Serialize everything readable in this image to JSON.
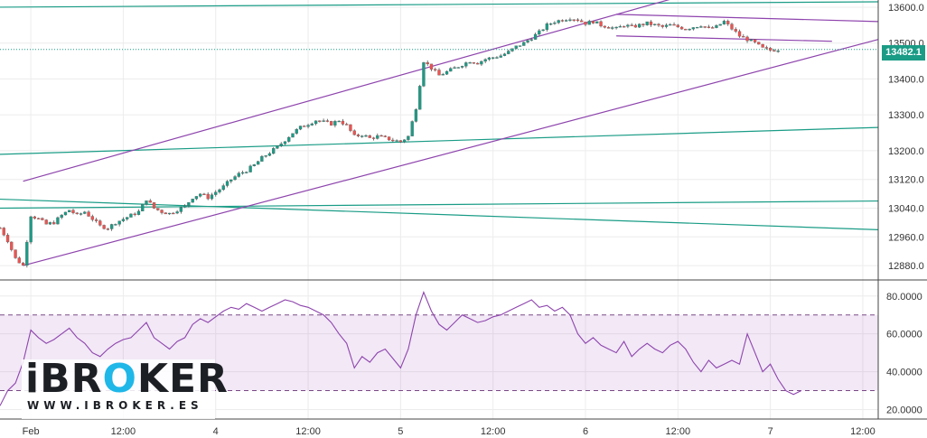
{
  "chart_data": [
    {
      "type": "candlestick",
      "panel": "price",
      "y_range": [
        12840,
        13620
      ],
      "y_ticks": [
        "13600.0",
        "13500.0",
        "13400.0",
        "13300.0",
        "13200.0",
        "13120.0",
        "13040.0",
        "12960.0",
        "12880.0"
      ],
      "y_tick_values": [
        13600,
        13500,
        13400,
        13300,
        13200,
        13120,
        13040,
        12960,
        12880
      ],
      "last_price": "13482.1",
      "x_tick_labels": [
        "Feb",
        "12:00",
        "4",
        "12:00",
        "5",
        "12:00",
        "6",
        "12:00",
        "7",
        "12:00"
      ],
      "x_tick_hours": [
        6,
        18,
        30,
        42,
        54,
        66,
        78,
        90,
        102,
        114
      ],
      "x_range_hours": [
        2,
        116
      ],
      "price_path": [
        [
          2,
          12985
        ],
        [
          3,
          12950
        ],
        [
          4,
          12900
        ],
        [
          5,
          12880
        ],
        [
          6,
          13020
        ],
        [
          7,
          13010
        ],
        [
          8,
          12995
        ],
        [
          9,
          13000
        ],
        [
          10,
          13020
        ],
        [
          11,
          13035
        ],
        [
          12,
          13020
        ],
        [
          13,
          13030
        ],
        [
          14,
          13010
        ],
        [
          15,
          12990
        ],
        [
          16,
          12985
        ],
        [
          17,
          13000
        ],
        [
          18,
          13010
        ],
        [
          19,
          13020
        ],
        [
          20,
          13030
        ],
        [
          21,
          13065
        ],
        [
          22,
          13040
        ],
        [
          23,
          13030
        ],
        [
          24,
          13025
        ],
        [
          25,
          13035
        ],
        [
          26,
          13045
        ],
        [
          27,
          13070
        ],
        [
          28,
          13080
        ],
        [
          29,
          13070
        ],
        [
          30,
          13085
        ],
        [
          31,
          13100
        ],
        [
          32,
          13120
        ],
        [
          33,
          13135
        ],
        [
          34,
          13145
        ],
        [
          35,
          13160
        ],
        [
          36,
          13180
        ],
        [
          37,
          13195
        ],
        [
          38,
          13210
        ],
        [
          39,
          13230
        ],
        [
          40,
          13250
        ],
        [
          41,
          13265
        ],
        [
          42,
          13275
        ],
        [
          43,
          13285
        ],
        [
          44,
          13280
        ],
        [
          45,
          13275
        ],
        [
          46,
          13285
        ],
        [
          47,
          13270
        ],
        [
          48,
          13240
        ],
        [
          49,
          13245
        ],
        [
          50,
          13235
        ],
        [
          51,
          13240
        ],
        [
          52,
          13235
        ],
        [
          53,
          13230
        ],
        [
          54,
          13225
        ],
        [
          55,
          13240
        ],
        [
          56,
          13320
        ],
        [
          57,
          13450
        ],
        [
          58,
          13430
        ],
        [
          59,
          13410
        ],
        [
          60,
          13420
        ],
        [
          61,
          13430
        ],
        [
          62,
          13440
        ],
        [
          63,
          13450
        ],
        [
          64,
          13445
        ],
        [
          65,
          13455
        ],
        [
          66,
          13460
        ],
        [
          67,
          13465
        ],
        [
          68,
          13475
        ],
        [
          69,
          13490
        ],
        [
          70,
          13500
        ],
        [
          71,
          13515
        ],
        [
          72,
          13530
        ],
        [
          73,
          13550
        ],
        [
          74,
          13560
        ],
        [
          75,
          13565
        ],
        [
          76,
          13570
        ],
        [
          77,
          13565
        ],
        [
          78,
          13555
        ],
        [
          79,
          13560
        ],
        [
          80,
          13550
        ],
        [
          81,
          13545
        ],
        [
          82,
          13540
        ],
        [
          83,
          13550
        ],
        [
          84,
          13545
        ],
        [
          85,
          13550
        ],
        [
          86,
          13555
        ],
        [
          87,
          13550
        ],
        [
          88,
          13545
        ],
        [
          89,
          13550
        ],
        [
          90,
          13545
        ],
        [
          91,
          13540
        ],
        [
          92,
          13545
        ],
        [
          93,
          13550
        ],
        [
          94,
          13540
        ],
        [
          95,
          13545
        ],
        [
          96,
          13560
        ],
        [
          97,
          13540
        ],
        [
          98,
          13520
        ],
        [
          99,
          13510
        ],
        [
          100,
          13500
        ],
        [
          101,
          13485
        ],
        [
          102,
          13480
        ],
        [
          103,
          13482
        ]
      ],
      "trendlines_teal": [
        {
          "from": [
            2,
            13600
          ],
          "to": [
            116,
            13615
          ]
        },
        {
          "from": [
            2,
            13190
          ],
          "to": [
            116,
            13265
          ]
        },
        {
          "from": [
            2,
            13065
          ],
          "to": [
            116,
            12980
          ]
        },
        {
          "from": [
            2,
            13040
          ],
          "to": [
            116,
            13060
          ]
        }
      ],
      "trendlines_purple": [
        {
          "from": [
            5,
            13115
          ],
          "to": [
            92,
            13640
          ]
        },
        {
          "from": [
            5,
            12880
          ],
          "to": [
            116,
            13510
          ]
        },
        {
          "from": [
            82,
            13580
          ],
          "to": [
            116,
            13560
          ]
        },
        {
          "from": [
            82,
            13520
          ],
          "to": [
            110,
            13505
          ]
        }
      ]
    },
    {
      "type": "line",
      "panel": "rsi",
      "y_range": [
        15,
        88
      ],
      "y_ticks": [
        "80.0000",
        "60.0000",
        "40.0000",
        "20.0000"
      ],
      "y_tick_values": [
        80,
        60,
        40,
        20
      ],
      "band": [
        30,
        70
      ],
      "series": [
        {
          "values": [
            [
              2,
              22
            ],
            [
              3,
              30
            ],
            [
              4,
              34
            ],
            [
              5,
              45
            ],
            [
              6,
              62
            ],
            [
              7,
              58
            ],
            [
              8,
              55
            ],
            [
              9,
              57
            ],
            [
              10,
              60
            ],
            [
              11,
              63
            ],
            [
              12,
              58
            ],
            [
              13,
              55
            ],
            [
              14,
              50
            ],
            [
              15,
              48
            ],
            [
              16,
              52
            ],
            [
              17,
              55
            ],
            [
              18,
              57
            ],
            [
              19,
              58
            ],
            [
              20,
              62
            ],
            [
              21,
              66
            ],
            [
              22,
              58
            ],
            [
              23,
              55
            ],
            [
              24,
              52
            ],
            [
              25,
              56
            ],
            [
              26,
              58
            ],
            [
              27,
              65
            ],
            [
              28,
              68
            ],
            [
              29,
              66
            ],
            [
              30,
              69
            ],
            [
              31,
              72
            ],
            [
              32,
              74
            ],
            [
              33,
              73
            ],
            [
              34,
              76
            ],
            [
              35,
              74
            ],
            [
              36,
              72
            ],
            [
              37,
              74
            ],
            [
              38,
              76
            ],
            [
              39,
              78
            ],
            [
              40,
              77
            ],
            [
              41,
              75
            ],
            [
              42,
              74
            ],
            [
              43,
              72
            ],
            [
              44,
              70
            ],
            [
              45,
              66
            ],
            [
              46,
              60
            ],
            [
              47,
              55
            ],
            [
              48,
              42
            ],
            [
              49,
              48
            ],
            [
              50,
              45
            ],
            [
              51,
              50
            ],
            [
              52,
              52
            ],
            [
              53,
              47
            ],
            [
              54,
              42
            ],
            [
              55,
              52
            ],
            [
              56,
              70
            ],
            [
              57,
              82
            ],
            [
              58,
              72
            ],
            [
              59,
              65
            ],
            [
              60,
              62
            ],
            [
              61,
              66
            ],
            [
              62,
              70
            ],
            [
              63,
              68
            ],
            [
              64,
              66
            ],
            [
              65,
              67
            ],
            [
              66,
              69
            ],
            [
              67,
              70
            ],
            [
              68,
              72
            ],
            [
              69,
              74
            ],
            [
              70,
              76
            ],
            [
              71,
              78
            ],
            [
              72,
              74
            ],
            [
              73,
              75
            ],
            [
              74,
              72
            ],
            [
              75,
              74
            ],
            [
              76,
              70
            ],
            [
              77,
              60
            ],
            [
              78,
              55
            ],
            [
              79,
              58
            ],
            [
              80,
              54
            ],
            [
              81,
              52
            ],
            [
              82,
              50
            ],
            [
              83,
              56
            ],
            [
              84,
              48
            ],
            [
              85,
              52
            ],
            [
              86,
              55
            ],
            [
              87,
              52
            ],
            [
              88,
              50
            ],
            [
              89,
              54
            ],
            [
              90,
              56
            ],
            [
              91,
              52
            ],
            [
              92,
              45
            ],
            [
              93,
              40
            ],
            [
              94,
              46
            ],
            [
              95,
              42
            ],
            [
              96,
              44
            ],
            [
              97,
              46
            ],
            [
              98,
              44
            ],
            [
              99,
              60
            ],
            [
              100,
              50
            ],
            [
              101,
              40
            ],
            [
              102,
              44
            ],
            [
              103,
              36
            ],
            [
              104,
              30
            ],
            [
              105,
              28
            ],
            [
              106,
              30
            ]
          ]
        }
      ]
    }
  ],
  "logo": {
    "brand_prefix": "iBR",
    "brand_o": "O",
    "brand_suffix": "KER",
    "url": "WWW.IBROKER.ES"
  }
}
